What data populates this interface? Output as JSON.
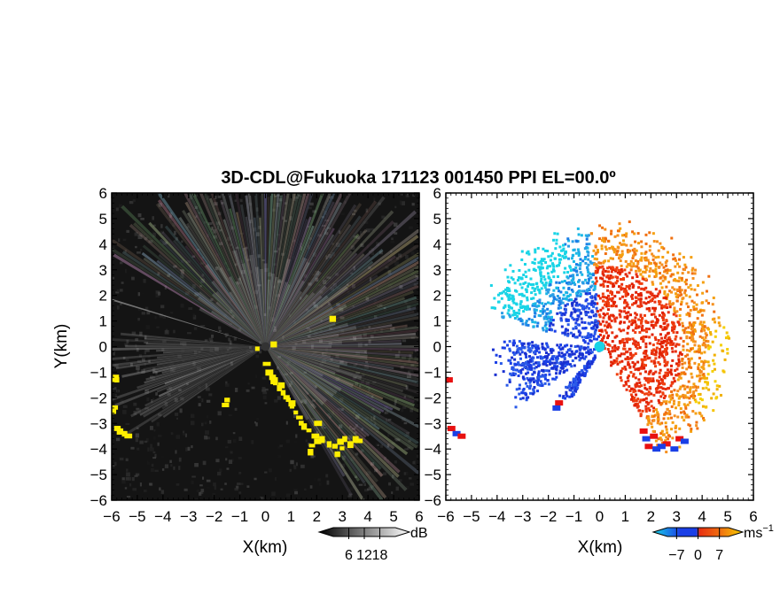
{
  "title": "3D-CDL@Fukuoka 171123 001450 PPI EL=00.0º",
  "chart_data": [
    {
      "type": "heatmap",
      "name": "reflectivity-ppi",
      "xlabel": "X(km)",
      "ylabel": "Y(km)",
      "xlim": [
        -6,
        6
      ],
      "ylim": [
        -6,
        6
      ],
      "x_ticks": [
        "−6",
        "−5",
        "−4",
        "−3",
        "−2",
        "−1",
        "0",
        "1",
        "2",
        "3",
        "4",
        "5",
        "6"
      ],
      "y_ticks": [
        "6",
        "5",
        "4",
        "3",
        "2",
        "1",
        "0",
        "−1",
        "−2",
        "−3",
        "−4",
        "−5",
        "−6"
      ],
      "colorbar": {
        "unit": "dB",
        "tick_labels": [
          "6",
          "12",
          "18"
        ],
        "ticks": [
          6,
          12,
          18
        ],
        "range": [
          0,
          24
        ],
        "colormap": "grayscale"
      },
      "flag_color": "#ffee00"
    },
    {
      "type": "heatmap",
      "name": "doppler-velocity-ppi",
      "xlabel": "X(km)",
      "ylabel": "",
      "xlim": [
        -6,
        6
      ],
      "ylim": [
        -6,
        6
      ],
      "x_ticks": [
        "−6",
        "−5",
        "−4",
        "−3",
        "−2",
        "−1",
        "0",
        "1",
        "2",
        "3",
        "4",
        "5",
        "6"
      ],
      "y_ticks": [
        "6",
        "5",
        "4",
        "3",
        "2",
        "1",
        "0",
        "−1",
        "−2",
        "−3",
        "−4",
        "−5",
        "−6"
      ],
      "colorbar": {
        "unit": "ms",
        "unit_exponent": "−1",
        "tick_labels": [
          "−7",
          "0",
          "7"
        ],
        "ticks": [
          -7,
          0,
          7
        ],
        "range": [
          -10,
          10
        ],
        "colormap": "blue-red-yellow"
      },
      "colors": {
        "approaching": "#1a3fe6",
        "receding": "#f04010",
        "far_receding": "#f5c400",
        "far_approaching": "#19d4e6"
      }
    }
  ]
}
